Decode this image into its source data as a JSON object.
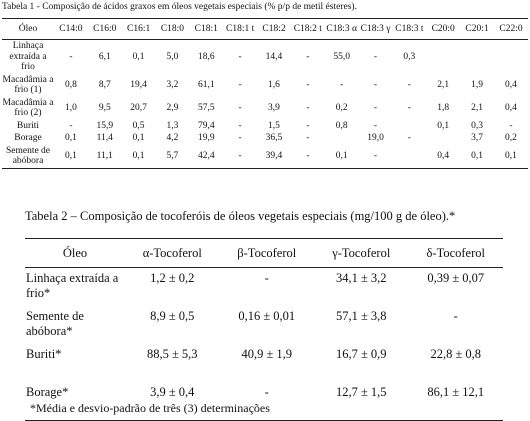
{
  "table1": {
    "title": "Tabela 1 - Composição de ácidos graxos em óleos vegetais especiais (% p/p de metil ésteres).",
    "header": [
      "Óleo",
      "C14:0",
      "C16:0",
      "C16:1",
      "C18:0",
      "C18:1",
      "C18:1 t",
      "C18:2",
      "C18:2 t",
      "C18:3 α",
      "C18:3 γ",
      "C18:3 t",
      "C20:0",
      "C20:1",
      "C22:0"
    ],
    "rows": [
      [
        "Linhaça extraída a frio",
        "-",
        "6,1",
        "0,1",
        "5,0",
        "18,6",
        "-",
        "14,4",
        "-",
        "55,0",
        "-",
        "0,3",
        null,
        null,
        null
      ],
      [
        "Macadâmia a frio (1)",
        "0,8",
        "8,7",
        "19,4",
        "3,2",
        "61,1",
        "-",
        "1,6",
        "-",
        "-",
        "-",
        "-",
        "2,1",
        "1,9",
        "0,4"
      ],
      [
        "Macadâmia a frio (2)",
        "1,0",
        "9,5",
        "20,7",
        "2,9",
        "57,5",
        "-",
        "3,9",
        "-",
        "0,2",
        "-",
        "-",
        "1,8",
        "2,1",
        "0,4"
      ],
      [
        "Buriti",
        "-",
        "15,9",
        "0,5",
        "1,3",
        "79,4",
        "-",
        "1,5",
        "-",
        "0,8",
        "-",
        null,
        "0,1",
        "0,3",
        "-"
      ],
      [
        "Borage",
        "0,1",
        "11,4",
        "0,1",
        "4,2",
        "19,9",
        "-",
        "36,5",
        "-",
        null,
        "19,0",
        "-",
        null,
        "3,7",
        "0,2"
      ],
      [
        "Semente de abóbora",
        "0,1",
        "11,1",
        "0,1",
        "5,7",
        "42,4",
        "-",
        "39,4",
        "-",
        "0,1",
        "-",
        null,
        "0,4",
        "0,1",
        "0,1"
      ]
    ]
  },
  "table2": {
    "title": "Tabela 2 – Composição de tocoferóis de óleos vegetais especiais (mg/100 g de óleo).*",
    "header": [
      "Óleo",
      "α-Tocoferol",
      "β-Tocoferol",
      "γ-Tocoferol",
      "δ-Tocoferol"
    ],
    "rows": [
      [
        "Linhaça extraída a frio*",
        "1,2 ± 0,2",
        "-",
        "34,1 ± 3,2",
        "0,39 ± 0,07"
      ],
      [
        "Semente de abóbora*",
        "8,9 ± 0,5",
        "0,16 ± 0,01",
        "57,1 ± 3,8",
        "-"
      ],
      [
        "Buriti*",
        "88,5 ± 5,3",
        "40,9 ± 1,9",
        "16,7 ± 0,9",
        "22,8 ± 0,8"
      ],
      [
        "Borage*",
        "3,9 ± 0,4",
        "-",
        "12,7 ± 1,5",
        "86,1 ± 12,1"
      ]
    ],
    "footnote": "*Média e desvio-padrão de três (3) determinações"
  }
}
